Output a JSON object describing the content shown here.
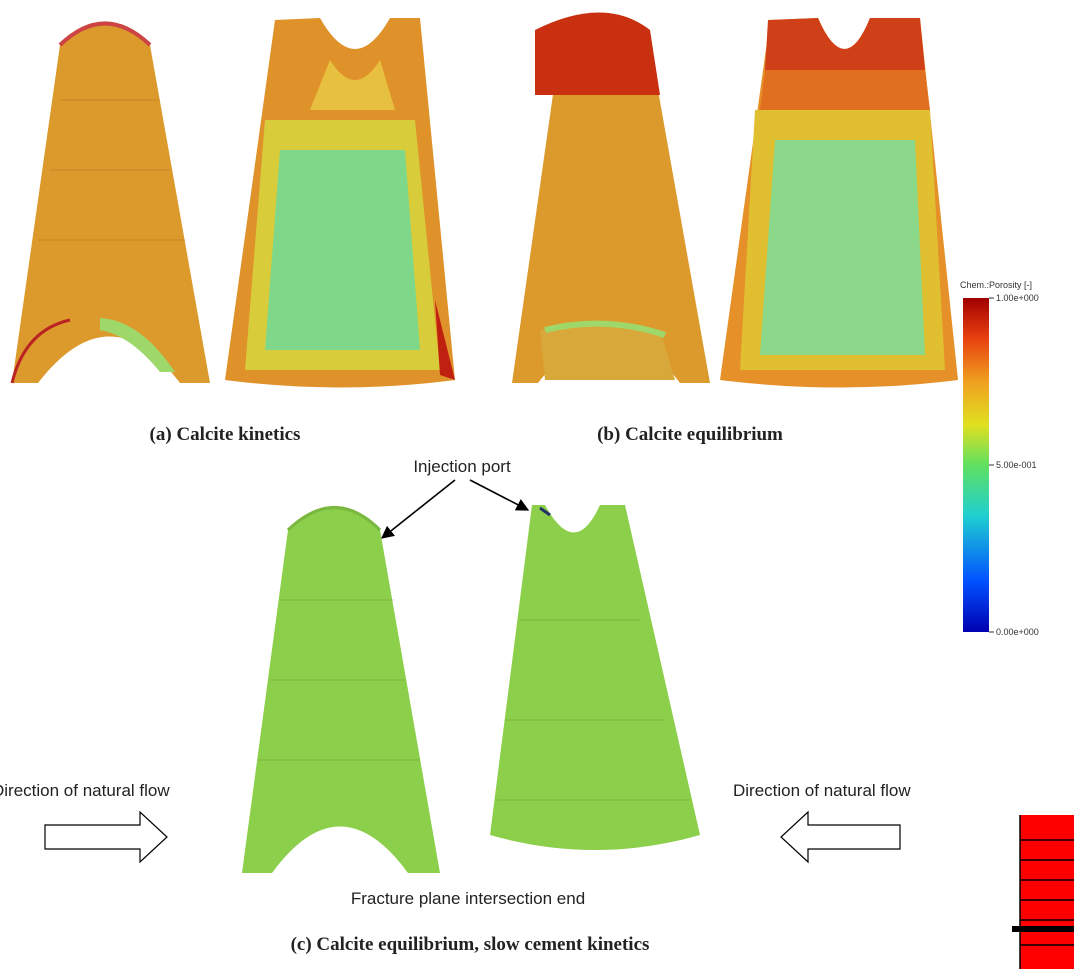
{
  "panels": [
    {
      "caption": "(a) Calcite kinetics"
    },
    {
      "caption": "(b) Calcite equilibrium"
    },
    {
      "caption": "(c) Calcite equilibrium, slow cement kinetics"
    }
  ],
  "annotations": {
    "injection_port": "Injection port",
    "flow_left": "Direction of natural flow",
    "flow_right": "Direction of natural flow",
    "fracture_end": "Fracture plane intersection end"
  },
  "colorbar": {
    "title": "Chem.:Porosity [-]",
    "range": [
      0,
      1
    ],
    "ticks": [
      {
        "value": 1,
        "label": "1.00e+000"
      },
      {
        "value": 0.5,
        "label": "5.00e-001"
      },
      {
        "value": 0,
        "label": "0.00e+000"
      }
    ]
  }
}
